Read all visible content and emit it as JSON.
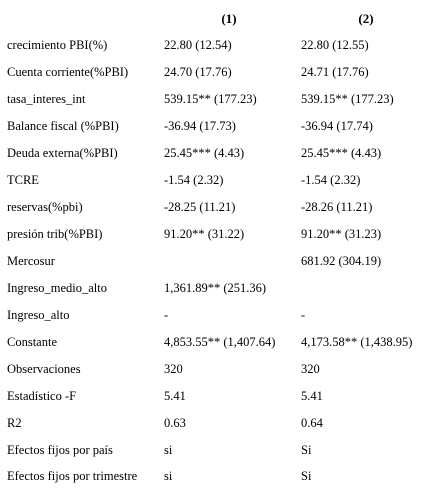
{
  "columns": [
    "(1)",
    "(2)"
  ],
  "rows": [
    {
      "label": "crecimiento PBI(%)",
      "c1": "22.80 (12.54)",
      "c2": "22.80 (12.55)"
    },
    {
      "label": "Cuenta corriente(%PBI)",
      "c1": "24.70 (17.76)",
      "c2": "24.71 (17.76)"
    },
    {
      "label": "tasa_interes_int",
      "c1": "539.15** (177.23)",
      "c2": "539.15** (177.23)"
    },
    {
      "label": "Balance fiscal (%PBI)",
      "c1": "-36.94 (17.73)",
      "c2": "-36.94 (17.74)"
    },
    {
      "label": "Deuda externa(%PBI)",
      "c1": "25.45*** (4.43)",
      "c2": "25.45*** (4.43)"
    },
    {
      "label": "TCRE",
      "c1": "-1.54 (2.32)",
      "c2": "-1.54 (2.32)"
    },
    {
      "label": "reservas(%pbi)",
      "c1": "-28.25 (11.21)",
      "c2": "-28.26 (11.21)"
    },
    {
      "label": "presión trib(%PBI)",
      "c1": "91.20** (31.22)",
      "c2": "91.20** (31.23)"
    },
    {
      "label": "Mercosur",
      "c1": "",
      "c2": "681.92 (304.19)"
    },
    {
      "label": "Ingreso_medio_alto",
      "c1": "1,361.89** (251.36)",
      "c2": ""
    },
    {
      "label": "Ingreso_alto",
      "c1": "-",
      "c2": "-"
    },
    {
      "label": "Constante",
      "c1": "4,853.55** (1,407.64)",
      "c2": "4,173.58** (1,438.95)"
    },
    {
      "label": "Observaciones",
      "c1": "320",
      "c2": "320"
    },
    {
      "label": "Estadístico -F",
      "c1": "5.41",
      "c2": "5.41"
    },
    {
      "label": "R2",
      "c1": "0.63",
      "c2": "0.64"
    },
    {
      "label": "Efectos fijos por país",
      "c1": "si",
      "c2": "Si"
    },
    {
      "label": "Efectos fijos por trimestre",
      "c1": "si",
      "c2": "Si"
    }
  ]
}
